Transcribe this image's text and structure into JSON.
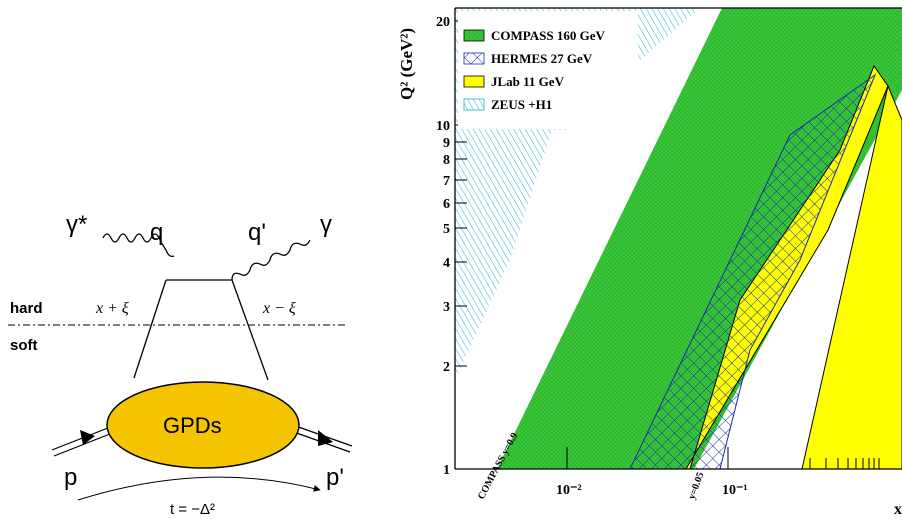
{
  "feynman": {
    "gamma_star": "γ*",
    "q": "q",
    "q_prime": "q'",
    "gamma": "γ",
    "hard": "hard",
    "soft": "soft",
    "x_plus_xi": "x + ξ",
    "x_minus_xi": "x − ξ",
    "gpds": "GPDs",
    "p": "p",
    "p_prime": "p'",
    "t_label": "t = −Δ²",
    "blob_color": "#f5c400"
  },
  "plot": {
    "ylabel": "Q² (GeV²)",
    "xlabel": "x",
    "y_ticks": [
      "20",
      "10",
      "9",
      "8",
      "7",
      "6",
      "5",
      "4",
      "3",
      "2",
      "1"
    ],
    "x_ticks": [
      "10⁻²",
      "10⁻¹"
    ],
    "legend": [
      {
        "label": "COMPASS 160 GeV",
        "color": "#3ac83a"
      },
      {
        "label": "HERMES 27 GeV",
        "color": "#1a2aa8"
      },
      {
        "label": "JLab 11 GeV",
        "color": "#ffff00"
      },
      {
        "label": "ZEUS +H1",
        "color": "#20b8c8"
      }
    ],
    "annotations": {
      "compass_y": "COMPASS  y=0.9",
      "hermes_y": "y=0.05"
    }
  }
}
